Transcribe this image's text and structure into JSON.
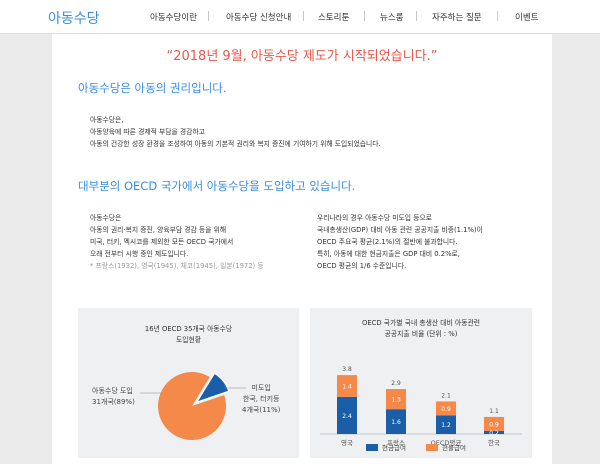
{
  "header": {
    "logo": "아동수당",
    "nav": [
      {
        "label": "아동수당이란"
      },
      {
        "label": "아동수당 신청안내"
      },
      {
        "label": "스토리툰"
      },
      {
        "label": "뉴스룸"
      },
      {
        "label": "자주하는 질문"
      },
      {
        "label": "이벤트"
      }
    ]
  },
  "main": {
    "headline": "“2018년 9월, 아동수당 제도가 시작되었습니다.”",
    "section1": {
      "title": "아동수당은 아동의 권리입니다.",
      "lines": [
        "아동수당은,",
        "아동양육에 따른 경제적 부담을 경감하고",
        "아동의 건강한 성장 환경을 조성하여 아동의 기본적 권리와 복지 증진에 기여하기 위해 도입되었습니다."
      ]
    },
    "section2": {
      "title": "대부분의 OECD 국가에서 아동수당을 도입하고 있습니다.",
      "left_lines": [
        "아동수당은",
        "아동의 권리·복지 증진, 양육부담 경감 등을 위해",
        "미국, 터키, 멕시코를 제외한 모든 OECD 국가에서",
        "오래 전부터 시행 중인 제도입니다."
      ],
      "left_note": "* 프랑스(1932), 영국(1945), 체코(1945), 일본(1972) 등",
      "right_lines": [
        "우리나라의 경우 아동수당 미도입 등으로",
        "국내총생산(GDP) 대비 아동 관련 공공지출 비중(1.1%)이",
        "OECD 주요국 평균(2.1%)의 절반에 불과합니다.",
        "특히, 아동에 대한 현금지출은 GDP 대비 0.2%로,",
        "OECD 평균의 1/6 수준입니다."
      ]
    }
  },
  "chart_data": [
    {
      "type": "pie",
      "title": "16년 OECD 35개국 아동수당 도입현황",
      "title_lines": [
        "16년 OECD 35개국 아동수당",
        "도입현황"
      ],
      "slices": [
        {
          "label_lines": [
            "아동수당 도입",
            "31개국(89%)"
          ],
          "value": 89,
          "color": "#f4894a"
        },
        {
          "label_lines": [
            "미도입",
            "한국, 터키등",
            "4개국(11%)"
          ],
          "value": 11,
          "color": "#1b5ea8"
        }
      ]
    },
    {
      "type": "bar",
      "stacked": true,
      "title_lines": [
        "OECD 국가별 국내 총생산 대비 아동관련",
        "공공지출 비율 (단위 : %)"
      ],
      "categories": [
        "영국",
        "프랑스",
        "OECD평균",
        "한국"
      ],
      "totals": [
        "3.8",
        "2.9",
        "2.1",
        "1.1"
      ],
      "series": [
        {
          "name": "현금급여",
          "values": [
            2.4,
            1.6,
            1.2,
            0.2
          ],
          "labels": [
            "2.4",
            "1.6",
            "1.2",
            "0.2"
          ],
          "color": "#1b5ea8"
        },
        {
          "name": "현물급여",
          "values": [
            1.4,
            1.3,
            0.9,
            0.9
          ],
          "labels": [
            "1.4",
            "1.3",
            "0.9",
            "0.9"
          ],
          "color": "#f4894a"
        }
      ],
      "legend_position": "bottom"
    }
  ]
}
